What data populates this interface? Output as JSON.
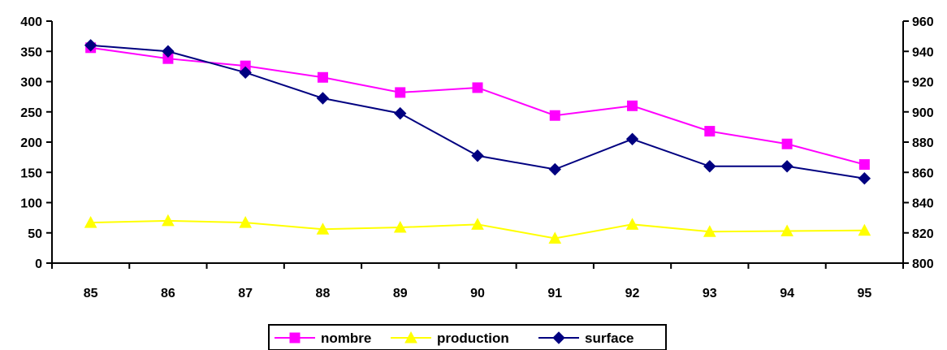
{
  "chart_data": {
    "type": "line",
    "categories": [
      "85",
      "86",
      "87",
      "88",
      "89",
      "90",
      "91",
      "92",
      "93",
      "94",
      "95"
    ],
    "left_axis": {
      "ylim": [
        0,
        400
      ],
      "ticks": [
        0,
        50,
        100,
        150,
        200,
        250,
        300,
        350,
        400
      ]
    },
    "right_axis": {
      "ylim": [
        800,
        960
      ],
      "ticks": [
        800,
        820,
        840,
        860,
        880,
        900,
        920,
        940,
        960
      ]
    },
    "grid": false,
    "legend_position": "bottom-center",
    "series": [
      {
        "name": "nombre",
        "axis": "left",
        "color": "#ff00ff",
        "marker": "square",
        "values": [
          356,
          338,
          326,
          307,
          282,
          290,
          244,
          260,
          218,
          197,
          163
        ]
      },
      {
        "name": "production",
        "axis": "left",
        "color": "#ffff00",
        "marker": "triangle",
        "values": [
          67,
          70,
          67,
          56,
          59,
          64,
          41,
          64,
          52,
          53,
          54
        ]
      },
      {
        "name": "surface",
        "axis": "right",
        "color": "#000080",
        "marker": "diamond",
        "values": [
          944,
          940,
          926,
          909,
          899,
          871,
          862,
          882,
          864,
          864,
          856
        ]
      }
    ]
  }
}
